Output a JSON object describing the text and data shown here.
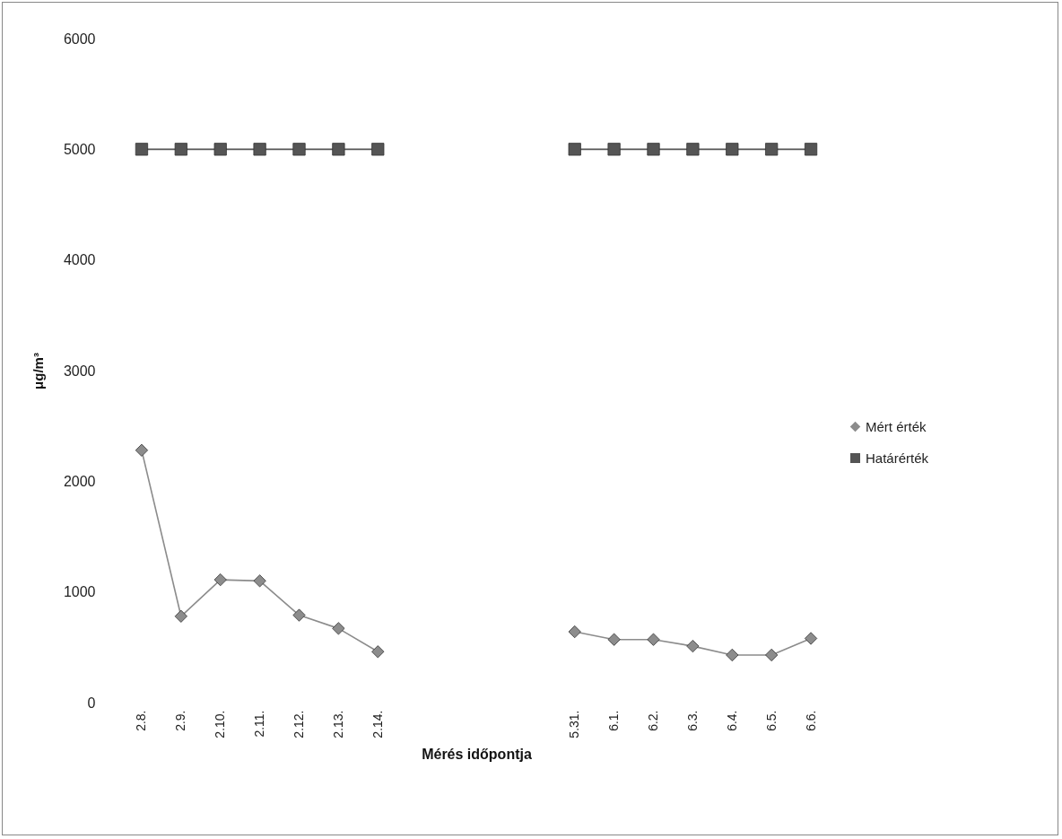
{
  "chart_data": {
    "type": "line",
    "xlabel": "Mérés időpontja",
    "ylabel": "μg/m³",
    "categories": [
      "2.8.",
      "2.9.",
      "2.10.",
      "2.11.",
      "2.12.",
      "2.13.",
      "2.14.",
      null,
      null,
      null,
      null,
      "5.31.",
      "6.1.",
      "6.2.",
      "6.3.",
      "6.4.",
      "6.5.",
      "6.6."
    ],
    "series": [
      {
        "name": "Mért érték",
        "color": "#8c8c8c",
        "marker": "diamond",
        "values": [
          2280,
          780,
          1110,
          1100,
          790,
          670,
          460,
          null,
          null,
          null,
          null,
          640,
          570,
          570,
          510,
          430,
          430,
          580
        ]
      },
      {
        "name": "Határérték",
        "color": "#555555",
        "marker": "square",
        "values": [
          5000,
          5000,
          5000,
          5000,
          5000,
          5000,
          5000,
          null,
          null,
          null,
          null,
          5000,
          5000,
          5000,
          5000,
          5000,
          5000,
          5000
        ]
      }
    ],
    "ylim": [
      0,
      6000
    ],
    "yticks": [
      0,
      1000,
      2000,
      3000,
      4000,
      5000,
      6000
    ],
    "grid": false,
    "legend": "right"
  }
}
